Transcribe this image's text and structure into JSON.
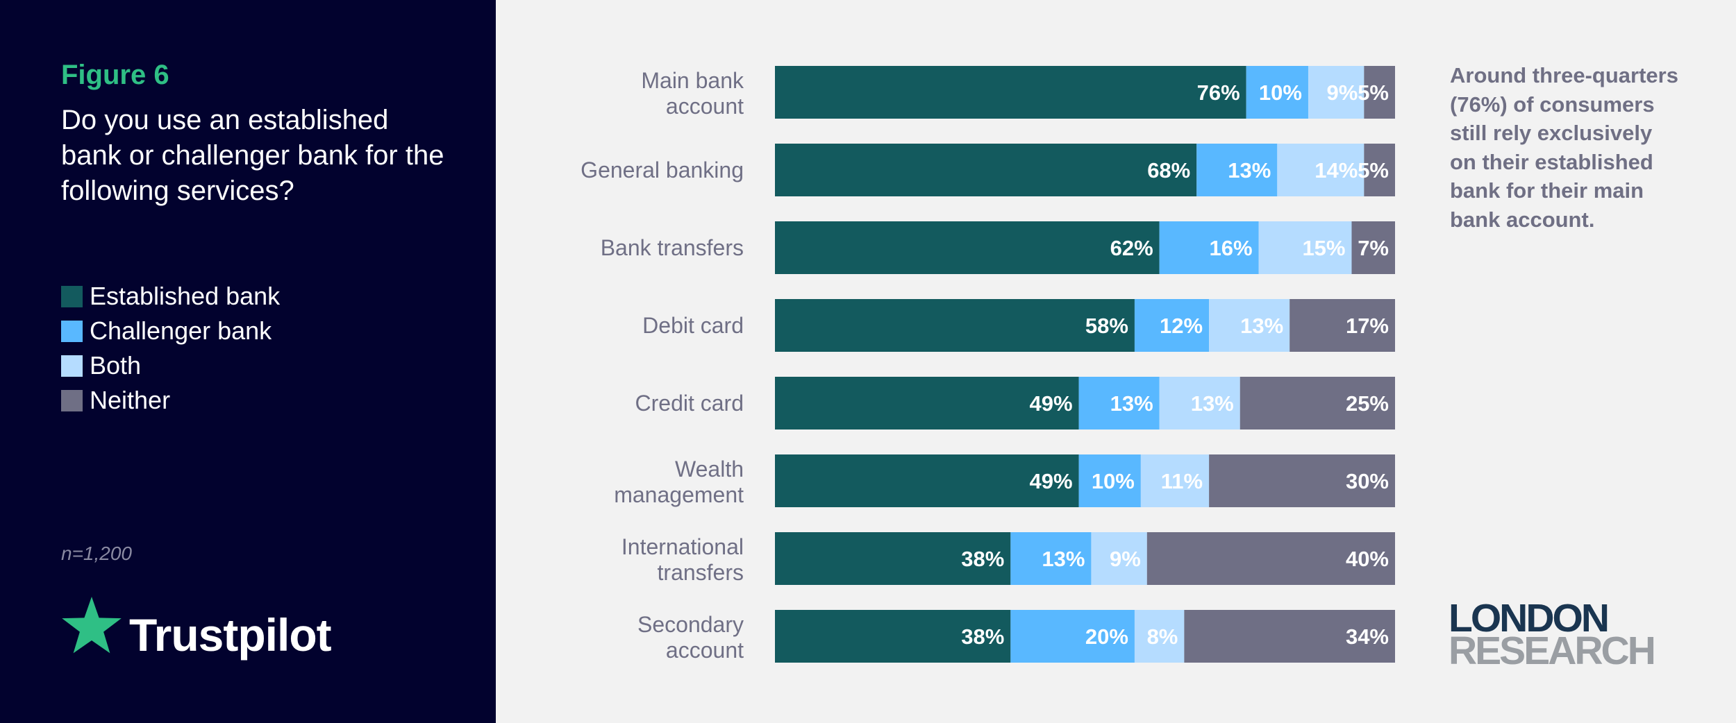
{
  "figure": {
    "label": "Figure 6",
    "question": "Do you use an established bank or challenger bank for the following services?",
    "sample_size": "n=1,200",
    "annotation": "Around three-quarters (76%) of consumers still rely exclusively on their established bank for their main bank account."
  },
  "colors": {
    "established": "#135a5e",
    "challenger": "#59b8ff",
    "both": "#b5dcff",
    "neither": "#6f6f85",
    "figure_label": "#2fbf85",
    "panel": "#02022e",
    "category_text": "#6f6f85",
    "bar_label": "#ffffff"
  },
  "legend": [
    {
      "name": "Established bank",
      "color": "#135a5e"
    },
    {
      "name": "Challenger bank",
      "color": "#59b8ff"
    },
    {
      "name": "Both",
      "color": "#b5dcff"
    },
    {
      "name": "Neither",
      "color": "#6f6f85"
    }
  ],
  "logos": {
    "trustpilot": {
      "text": "Trustpilot",
      "star_color": "#2fbf85",
      "icon": "star-icon"
    },
    "london_research": {
      "line1": "LONDON",
      "line2": "RESEARCH",
      "color1": "#1a3550",
      "color2": "#9a9ea3"
    }
  },
  "chart_data": {
    "type": "bar",
    "orientation": "horizontal",
    "stacked": true,
    "unit": "%",
    "xlim": [
      0,
      100
    ],
    "grid": false,
    "categories": [
      [
        "Main bank",
        "account"
      ],
      [
        "General banking"
      ],
      [
        "Bank transfers"
      ],
      [
        "Debit card"
      ],
      [
        "Credit card"
      ],
      [
        "Wealth",
        "management"
      ],
      [
        "International",
        "transfers"
      ],
      [
        "Secondary",
        "account"
      ]
    ],
    "series": [
      {
        "name": "Established bank",
        "values": [
          76,
          68,
          62,
          58,
          49,
          49,
          38,
          38
        ]
      },
      {
        "name": "Challenger bank",
        "values": [
          10,
          13,
          16,
          12,
          13,
          10,
          13,
          20
        ]
      },
      {
        "name": "Both",
        "values": [
          9,
          14,
          15,
          13,
          13,
          11,
          9,
          8
        ]
      },
      {
        "name": "Neither",
        "values": [
          5,
          5,
          7,
          17,
          25,
          30,
          40,
          34
        ]
      }
    ]
  }
}
